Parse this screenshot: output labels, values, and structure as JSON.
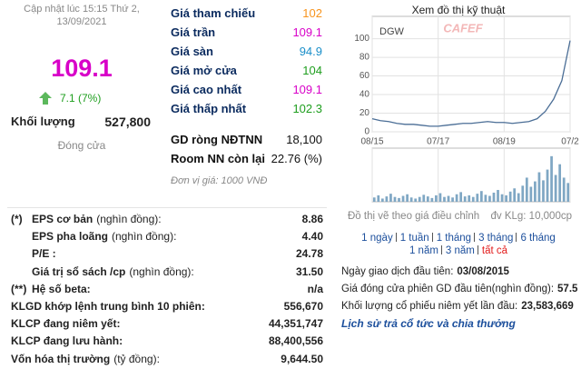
{
  "update": {
    "line1": "Cập nhật lúc 15:15 Thứ 2,",
    "line2": "13/09/2021"
  },
  "price": "109.1",
  "change": "7.1 (7%)",
  "volume_label": "Khối lượng",
  "volume": "527,800",
  "status": "Đóng cửa",
  "quotes": [
    {
      "label": "Giá tham chiếu",
      "value": "102",
      "color": "#f7941d"
    },
    {
      "label": "Giá trần",
      "value": "109.1",
      "color": "#d800c8"
    },
    {
      "label": "Giá sàn",
      "value": "94.9",
      "color": "#1a8fc9"
    },
    {
      "label": "Giá mở cửa",
      "value": "104",
      "color": "#1e9e1e"
    },
    {
      "label": "Giá cao nhất",
      "value": "109.1",
      "color": "#d800c8"
    },
    {
      "label": "Giá thấp nhất",
      "value": "102.3",
      "color": "#1e9e1e"
    }
  ],
  "foreign": [
    {
      "label": "GD ròng NĐTNN",
      "value": "18,100"
    },
    {
      "label": "Room NN còn lại",
      "value": "22.76 (%)"
    }
  ],
  "unit_note": "Đơn vị giá: 1000 VNĐ",
  "stats": [
    {
      "mark": "(*)",
      "label": "EPS cơ bản",
      "note": "(nghìn đồng):",
      "value": "8.86"
    },
    {
      "label": "EPS pha loãng",
      "note": "(nghìn đồng):",
      "value": "4.40"
    },
    {
      "label": "P/E :",
      "value": "24.78"
    },
    {
      "label": "Giá trị sổ sách /cp",
      "note": "(nghìn đồng):",
      "value": "31.50"
    },
    {
      "mark": "(**)",
      "label": "Hệ số beta:",
      "value": "n/a"
    },
    {
      "label": "KLGD khớp lệnh trung bình 10 phiên:",
      "value": "556,670"
    },
    {
      "label": "KLCP đang niêm yết:",
      "value": "44,351,747"
    },
    {
      "label": "KLCP đang lưu hành:",
      "value": "88,400,556"
    },
    {
      "label": "Vốn hóa thị trường",
      "note": "(tỷ đồng):",
      "value": "9,644.50"
    }
  ],
  "chart_data": {
    "type": "line",
    "title": "Xem đồ thị kỹ thuật",
    "watermark": "CAFEF",
    "series": [
      {
        "name": "DGW",
        "color": "#4b6e96",
        "values": [
          14,
          12,
          11,
          9,
          8,
          8,
          7,
          6,
          6,
          7,
          8,
          9,
          9,
          10,
          11,
          10,
          10,
          9,
          10,
          11,
          14,
          22,
          35,
          55,
          98
        ]
      }
    ],
    "xlim": [
      0,
      24
    ],
    "xticks": [
      {
        "value": 0,
        "label": "08/15"
      },
      {
        "value": 8,
        "label": "07/17"
      },
      {
        "value": 16,
        "label": "08/19"
      },
      {
        "value": 24,
        "label": "07/2"
      }
    ],
    "ylim": [
      0,
      124
    ],
    "yticks": [
      0,
      20,
      40,
      60,
      80,
      100
    ],
    "grid": true,
    "volume": {
      "color": "#7fa7c4",
      "ylim": [
        0,
        100
      ],
      "values": [
        8,
        12,
        6,
        10,
        15,
        9,
        7,
        11,
        14,
        8,
        6,
        9,
        13,
        10,
        7,
        12,
        16,
        9,
        11,
        8,
        14,
        18,
        10,
        12,
        9,
        15,
        20,
        13,
        11,
        17,
        22,
        14,
        12,
        19,
        25,
        16,
        30,
        45,
        28,
        38,
        55,
        40,
        60,
        85,
        50,
        70,
        45,
        35
      ]
    },
    "note": "Đồ thị vẽ theo giá điều chỉnh",
    "volume_unit": "đv KLg: 10,000cp"
  },
  "periods": [
    [
      "1 ngày",
      "1 tuần",
      "1 tháng",
      "3 tháng",
      "6 tháng"
    ],
    [
      "1 năm",
      "3 năm",
      "tất cả"
    ]
  ],
  "listing": [
    {
      "label": "Ngày giao dịch đầu tiên:",
      "value": "03/08/2015"
    },
    {
      "label": "Giá đóng cửa phiên GD đầu tiên(nghìn đồng):",
      "value": "57.5"
    },
    {
      "label": "Khối lượng cổ phiếu niêm yết lần đầu:",
      "value": "23,583,669"
    }
  ],
  "dividend_link": "Lịch sử trả cổ tức và chia thưởng"
}
